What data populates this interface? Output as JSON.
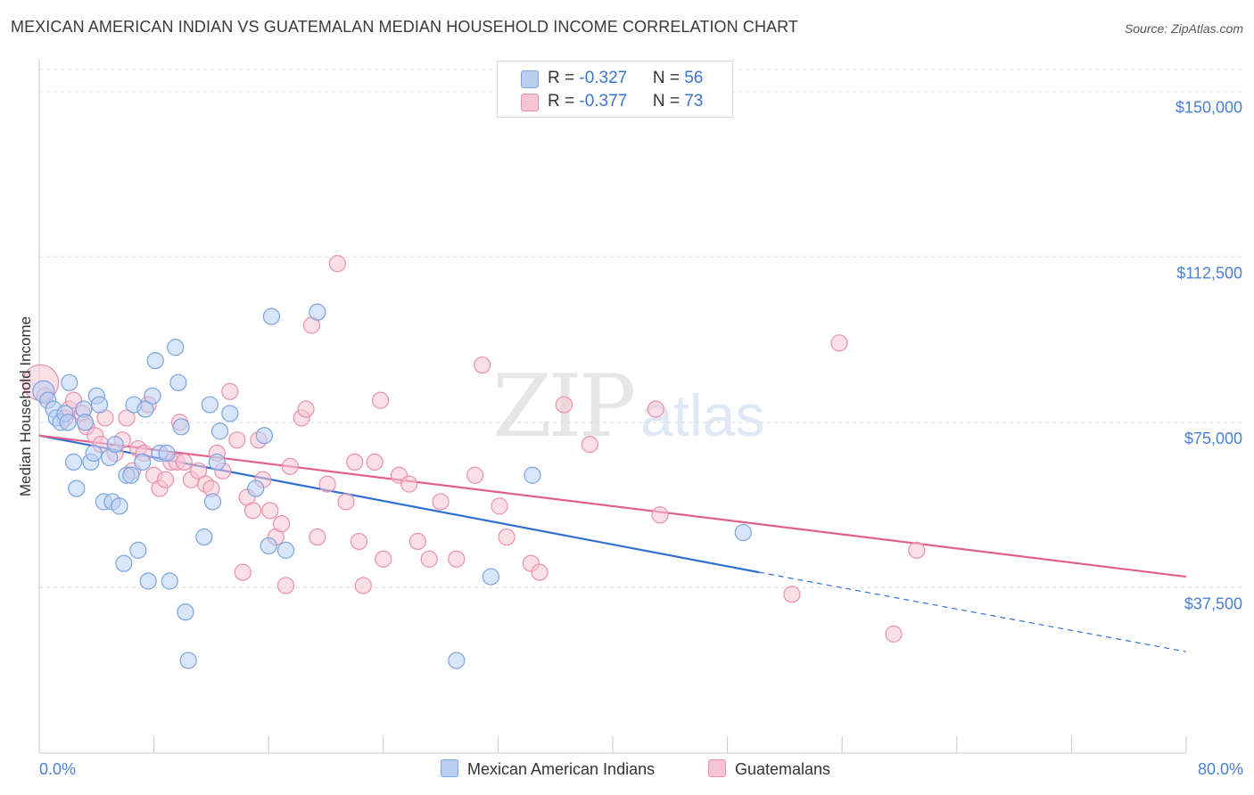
{
  "title": "MEXICAN AMERICAN INDIAN VS GUATEMALAN MEDIAN HOUSEHOLD INCOME CORRELATION CHART",
  "source": "Source: ZipAtlas.com",
  "watermark": {
    "zip": "ZIP",
    "atlas": "atlas"
  },
  "legend": {
    "rows": [
      {
        "r_label": "R = ",
        "r_value": "-0.327",
        "n_label": "N = ",
        "n_value": "56",
        "color": "#b9d0f2"
      },
      {
        "r_label": "R = ",
        "r_value": "-0.377",
        "n_label": "N = ",
        "n_value": "73",
        "color": "#f7c4d3"
      }
    ]
  },
  "bottom_legend": [
    "Mexican American Indians",
    "Guatemalans"
  ],
  "chart_data": {
    "type": "scatter",
    "title": "MEXICAN AMERICAN INDIAN VS GUATEMALAN MEDIAN HOUSEHOLD INCOME CORRELATION CHART",
    "xlabel": "",
    "ylabel": "Median Household Income",
    "xlim": [
      0,
      80
    ],
    "ylim": [
      0,
      155000
    ],
    "x_tick_labels": [
      "0.0%",
      "80.0%"
    ],
    "y_tick_values": [
      37500,
      75000,
      112500,
      150000
    ],
    "y_tick_labels": [
      "$37,500",
      "$75,000",
      "$112,500",
      "$150,000"
    ],
    "grid": "horizontal dashed",
    "legend_position": "top-center",
    "colors": {
      "blue_fill": "#b9d0f2",
      "blue_stroke": "#7aa3e0",
      "blue_line": "#2f6fd0",
      "pink_fill": "#f7c4d3",
      "pink_stroke": "#eb8fac",
      "pink_line": "#e0608a"
    },
    "series": [
      {
        "name": "Mexican American Indians",
        "trend": {
          "x": [
            0,
            50.2
          ],
          "y": [
            72000,
            41000
          ],
          "dashed_to": [
            80,
            23000
          ]
        },
        "points": [
          [
            0.3,
            82000
          ],
          [
            0.6,
            80000
          ],
          [
            1.0,
            78000
          ],
          [
            1.2,
            76000
          ],
          [
            1.5,
            75000
          ],
          [
            1.8,
            77000
          ],
          [
            2.0,
            75000
          ],
          [
            2.1,
            84000
          ],
          [
            2.4,
            66000
          ],
          [
            2.6,
            60000
          ],
          [
            3.1,
            78000
          ],
          [
            3.2,
            75000
          ],
          [
            3.6,
            66000
          ],
          [
            3.8,
            68000
          ],
          [
            4.0,
            81000
          ],
          [
            4.2,
            79000
          ],
          [
            4.5,
            57000
          ],
          [
            4.9,
            67000
          ],
          [
            5.1,
            57000
          ],
          [
            5.3,
            70000
          ],
          [
            5.6,
            56000
          ],
          [
            5.9,
            43000
          ],
          [
            6.1,
            63000
          ],
          [
            6.4,
            63000
          ],
          [
            6.6,
            79000
          ],
          [
            6.9,
            46000
          ],
          [
            7.2,
            66000
          ],
          [
            7.4,
            78000
          ],
          [
            7.6,
            39000
          ],
          [
            7.9,
            81000
          ],
          [
            8.1,
            89000
          ],
          [
            8.4,
            68000
          ],
          [
            8.9,
            68000
          ],
          [
            9.1,
            39000
          ],
          [
            9.5,
            92000
          ],
          [
            9.7,
            84000
          ],
          [
            9.9,
            74000
          ],
          [
            10.2,
            32000
          ],
          [
            10.4,
            21000
          ],
          [
            11.5,
            49000
          ],
          [
            11.9,
            79000
          ],
          [
            12.1,
            57000
          ],
          [
            12.4,
            66000
          ],
          [
            12.6,
            73000
          ],
          [
            13.3,
            77000
          ],
          [
            15.1,
            60000
          ],
          [
            15.7,
            72000
          ],
          [
            16.0,
            47000
          ],
          [
            16.2,
            99000
          ],
          [
            17.2,
            46000
          ],
          [
            19.4,
            100000
          ],
          [
            29.1,
            21000
          ],
          [
            31.5,
            40000
          ],
          [
            34.4,
            63000
          ],
          [
            49.1,
            50000
          ]
        ]
      },
      {
        "name": "Guatemalans",
        "trend": {
          "x": [
            0,
            80
          ],
          "y": [
            72000,
            40000
          ]
        },
        "points": [
          [
            0.1,
            84000
          ],
          [
            0.4,
            81000
          ],
          [
            1.8,
            76000
          ],
          [
            2.1,
            78000
          ],
          [
            2.4,
            80000
          ],
          [
            3.0,
            77000
          ],
          [
            3.3,
            74000
          ],
          [
            3.9,
            72000
          ],
          [
            4.3,
            70000
          ],
          [
            4.6,
            76000
          ],
          [
            5.3,
            68000
          ],
          [
            5.8,
            71000
          ],
          [
            6.1,
            76000
          ],
          [
            6.5,
            64000
          ],
          [
            6.9,
            69000
          ],
          [
            7.3,
            68000
          ],
          [
            7.6,
            79000
          ],
          [
            8.0,
            63000
          ],
          [
            8.4,
            60000
          ],
          [
            8.8,
            62000
          ],
          [
            9.2,
            66000
          ],
          [
            9.6,
            66000
          ],
          [
            9.8,
            75000
          ],
          [
            10.1,
            66000
          ],
          [
            10.6,
            62000
          ],
          [
            11.1,
            64000
          ],
          [
            11.6,
            61000
          ],
          [
            12.0,
            60000
          ],
          [
            12.4,
            68000
          ],
          [
            12.8,
            64000
          ],
          [
            13.3,
            82000
          ],
          [
            13.8,
            71000
          ],
          [
            14.2,
            41000
          ],
          [
            14.5,
            58000
          ],
          [
            14.9,
            55000
          ],
          [
            15.3,
            71000
          ],
          [
            15.6,
            62000
          ],
          [
            16.1,
            55000
          ],
          [
            16.5,
            49000
          ],
          [
            16.9,
            52000
          ],
          [
            17.2,
            38000
          ],
          [
            17.5,
            65000
          ],
          [
            18.3,
            76000
          ],
          [
            18.6,
            78000
          ],
          [
            19.0,
            97000
          ],
          [
            19.4,
            49000
          ],
          [
            20.1,
            61000
          ],
          [
            20.8,
            111000
          ],
          [
            21.4,
            57000
          ],
          [
            22.0,
            66000
          ],
          [
            22.3,
            48000
          ],
          [
            22.6,
            38000
          ],
          [
            23.4,
            66000
          ],
          [
            23.8,
            80000
          ],
          [
            24.0,
            44000
          ],
          [
            25.1,
            63000
          ],
          [
            25.8,
            61000
          ],
          [
            26.4,
            48000
          ],
          [
            27.2,
            44000
          ],
          [
            28.0,
            57000
          ],
          [
            29.1,
            44000
          ],
          [
            30.4,
            63000
          ],
          [
            30.9,
            88000
          ],
          [
            32.1,
            56000
          ],
          [
            32.6,
            49000
          ],
          [
            34.3,
            43000
          ],
          [
            34.9,
            41000
          ],
          [
            36.6,
            79000
          ],
          [
            38.4,
            70000
          ],
          [
            43.0,
            78000
          ],
          [
            43.3,
            54000
          ],
          [
            52.5,
            36000
          ],
          [
            55.8,
            93000
          ],
          [
            59.6,
            27000
          ],
          [
            61.2,
            46000
          ]
        ]
      }
    ]
  }
}
